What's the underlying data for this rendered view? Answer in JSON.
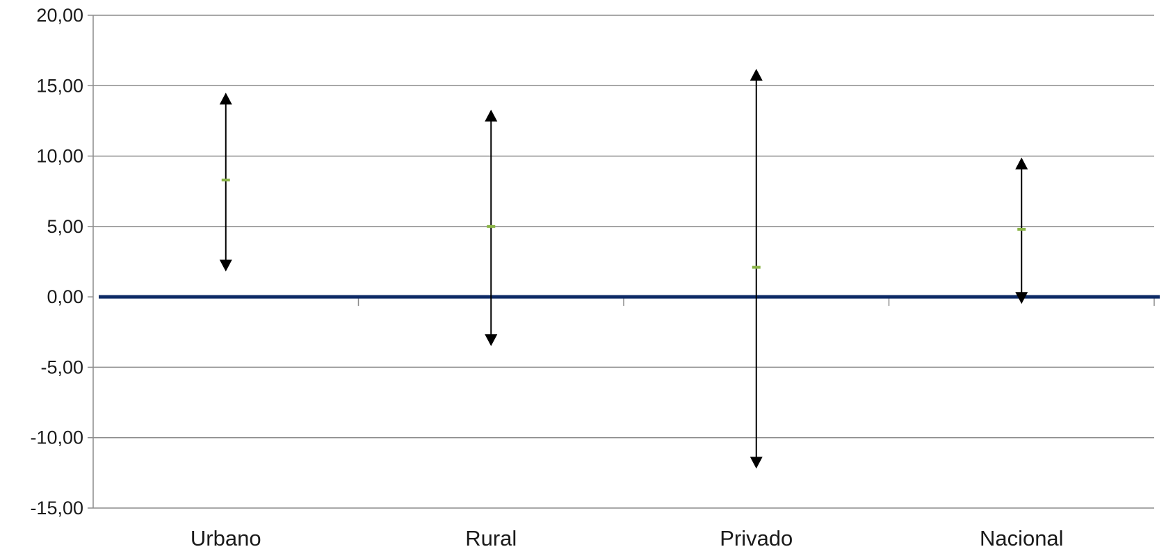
{
  "chart_data": {
    "type": "interval",
    "title": "",
    "xlabel": "",
    "ylabel": "",
    "categories": [
      "Urbano",
      "Rural",
      "Privado",
      "Nacional"
    ],
    "y_ticks": [
      "20,00",
      "15,00",
      "10,00",
      "5,00",
      "0,00",
      "-5,00",
      "-10,00",
      "-15,00"
    ],
    "y_tick_values": [
      20,
      15,
      10,
      5,
      0,
      -5,
      -10,
      -15
    ],
    "ylim": [
      -15,
      20
    ],
    "grid": true,
    "series": [
      {
        "name": "",
        "role": "estimate",
        "values": [
          8.3,
          5.0,
          2.1,
          4.8
        ]
      },
      {
        "name": "",
        "role": "upper",
        "values": [
          14.5,
          13.3,
          16.2,
          9.9
        ]
      },
      {
        "name": "",
        "role": "lower",
        "values": [
          1.8,
          -3.5,
          -12.2,
          -0.5
        ]
      }
    ],
    "reference_line": {
      "value": 0
    },
    "colors": {
      "grid": "#8c8c8c",
      "zero_line": "#0d2a66",
      "interval": "#000000",
      "estimate": "#8ab446"
    }
  }
}
